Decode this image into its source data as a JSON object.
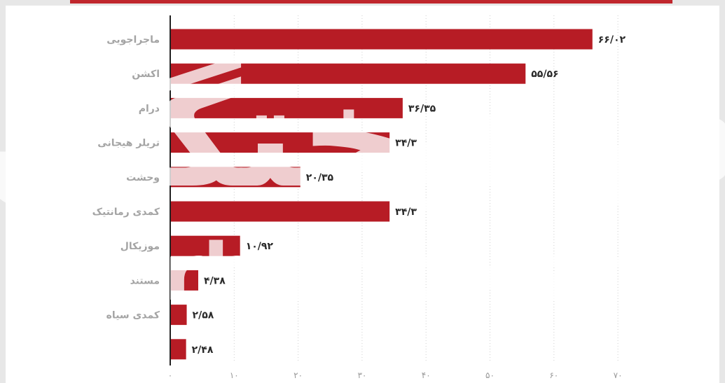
{
  "chart_data": {
    "type": "bar",
    "orientation": "horizontal",
    "categories": [
      "ماجراجویی",
      "اکشن",
      "درام",
      "تریلر هیجانی",
      "وحشت",
      "کمدی رمانتیک",
      "موزیکال",
      "مستند",
      "کمدی سیاه",
      ""
    ],
    "values": [
      66.02,
      55.56,
      36.35,
      34.3,
      20.35,
      34.3,
      10.92,
      4.38,
      2.58,
      2.48
    ],
    "value_labels": [
      "۶۶/۰۲",
      "۵۵/۵۶",
      "۳۶/۳۵",
      "۳۴/۳",
      "۲۰/۳۵",
      "۳۴/۳",
      "۱۰/۹۲",
      "۴/۳۸",
      "۲/۵۸",
      "۲/۴۸"
    ],
    "x_ticks": [
      0,
      10,
      20,
      30,
      40,
      50,
      60,
      70
    ],
    "x_tick_labels": [
      "۰",
      "۱۰",
      "۲۰",
      "۳۰",
      "۴۰",
      "۵۰",
      "۶۰",
      "۷۰"
    ],
    "xlim": [
      0,
      70
    ],
    "grid": true,
    "title": "",
    "xlabel": "",
    "ylabel": ""
  },
  "watermark": {
    "main": "فرهیختگان",
    "latin": "farhikhtegan"
  },
  "colors": {
    "bar": "#b71c25",
    "background": "#e7e7e7",
    "plot_background": "#ffffff",
    "title_strip": "#c0272d"
  }
}
